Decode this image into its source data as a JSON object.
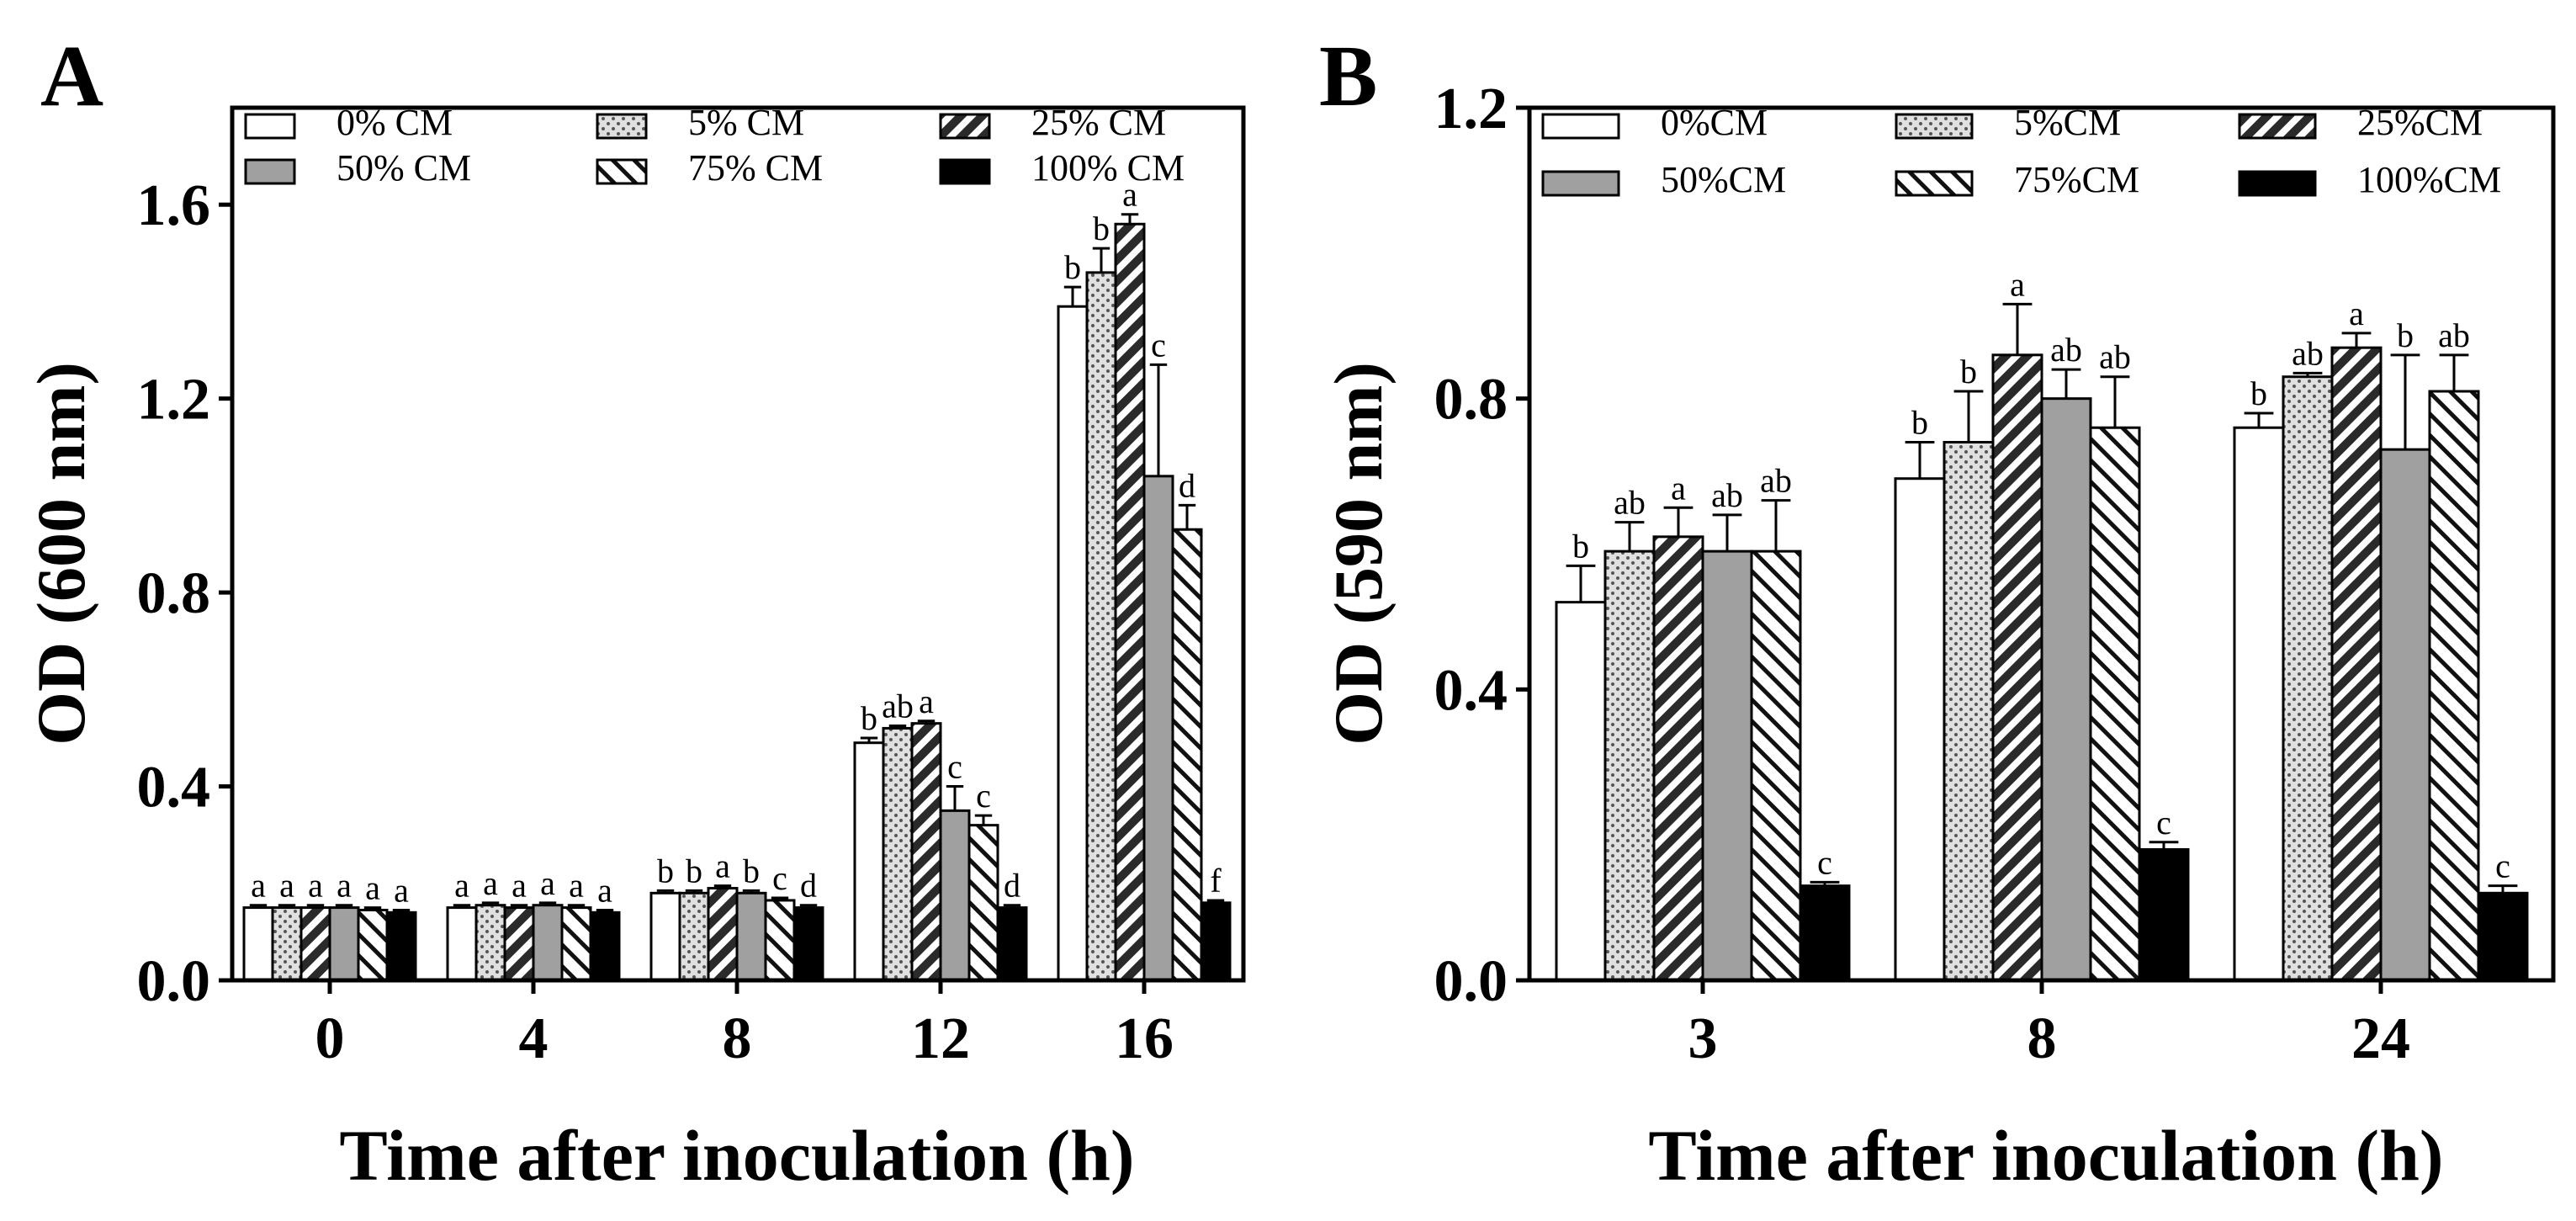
{
  "chart_data": [
    {
      "panel": "A",
      "type": "bar",
      "xlabel": "Time after inoculation (h)",
      "ylabel": "OD (600 nm)",
      "ylim": [
        0,
        1.8
      ],
      "yticks": [
        "0.0",
        "0.4",
        "0.8",
        "1.2",
        "1.6"
      ],
      "categories": [
        "0",
        "4",
        "8",
        "12",
        "16"
      ],
      "legend_position": "top",
      "series": [
        {
          "name": "0% CM",
          "pattern": "white",
          "values": [
            0.15,
            0.15,
            0.18,
            0.49,
            1.39
          ],
          "errors": [
            0.005,
            0.005,
            0.005,
            0.01,
            0.04
          ],
          "labels": [
            "a",
            "a",
            "b",
            "b",
            "b"
          ]
        },
        {
          "name": "5% CM",
          "pattern": "dots",
          "values": [
            0.15,
            0.155,
            0.18,
            0.52,
            1.46
          ],
          "errors": [
            0.005,
            0.005,
            0.005,
            0.005,
            0.05
          ],
          "labels": [
            "a",
            "a",
            "b",
            "ab",
            "b"
          ]
        },
        {
          "name": "25% CM",
          "pattern": "diag",
          "values": [
            0.15,
            0.15,
            0.19,
            0.53,
            1.56
          ],
          "errors": [
            0.005,
            0.005,
            0.005,
            0.005,
            0.02
          ],
          "labels": [
            "a",
            "a",
            "a",
            "a",
            "a"
          ]
        },
        {
          "name": "50% CM",
          "pattern": "gray",
          "values": [
            0.15,
            0.155,
            0.18,
            0.35,
            1.04
          ],
          "errors": [
            0.005,
            0.005,
            0.005,
            0.05,
            0.23
          ],
          "labels": [
            "a",
            "a",
            "b",
            "c",
            "c"
          ]
        },
        {
          "name": "75% CM",
          "pattern": "anti",
          "values": [
            0.145,
            0.15,
            0.165,
            0.32,
            0.93
          ],
          "errors": [
            0.005,
            0.005,
            0.005,
            0.02,
            0.05
          ],
          "labels": [
            "a",
            "a",
            "c",
            "c",
            "d"
          ]
        },
        {
          "name": "100% CM",
          "pattern": "black",
          "values": [
            0.14,
            0.14,
            0.15,
            0.15,
            0.16
          ],
          "errors": [
            0.005,
            0.005,
            0.005,
            0.005,
            0.005
          ],
          "labels": [
            "a",
            "a",
            "d",
            "d",
            "f"
          ]
        }
      ]
    },
    {
      "panel": "B",
      "type": "bar",
      "xlabel": "Time after inoculation (h)",
      "ylabel": "OD (590 nm)",
      "ylim": [
        0,
        1.2
      ],
      "yticks": [
        "0.0",
        "0.4",
        "0.8",
        "1.2"
      ],
      "categories": [
        "3",
        "8",
        "24"
      ],
      "legend_position": "top",
      "series": [
        {
          "name": "0%CM",
          "pattern": "white",
          "values": [
            0.52,
            0.69,
            0.76
          ],
          "errors": [
            0.05,
            0.05,
            0.02
          ],
          "labels": [
            "b",
            "b",
            "b"
          ]
        },
        {
          "name": "5%CM",
          "pattern": "dots",
          "values": [
            0.59,
            0.74,
            0.83
          ],
          "errors": [
            0.04,
            0.07,
            0.005
          ],
          "labels": [
            "ab",
            "b",
            "ab"
          ]
        },
        {
          "name": "25%CM",
          "pattern": "diag",
          "values": [
            0.61,
            0.86,
            0.87
          ],
          "errors": [
            0.04,
            0.07,
            0.02
          ],
          "labels": [
            "a",
            "a",
            "a"
          ]
        },
        {
          "name": "50%CM",
          "pattern": "gray",
          "values": [
            0.59,
            0.8,
            0.73
          ],
          "errors": [
            0.05,
            0.04,
            0.13
          ],
          "labels": [
            "ab",
            "ab",
            "b"
          ]
        },
        {
          "name": "75%CM",
          "pattern": "anti",
          "values": [
            0.59,
            0.76,
            0.81
          ],
          "errors": [
            0.07,
            0.07,
            0.05
          ],
          "labels": [
            "ab",
            "ab",
            "ab"
          ]
        },
        {
          "name": "100%CM",
          "pattern": "black",
          "values": [
            0.13,
            0.18,
            0.12
          ],
          "errors": [
            0.005,
            0.01,
            0.01
          ],
          "labels": [
            "c",
            "c",
            "c"
          ]
        }
      ]
    }
  ]
}
